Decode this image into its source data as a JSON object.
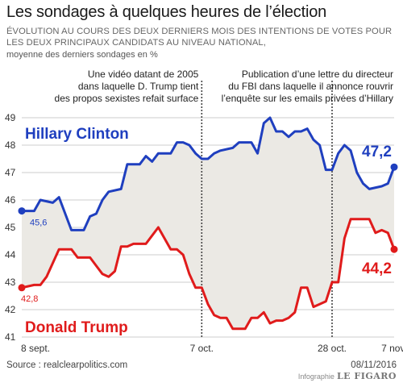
{
  "header": {
    "title": "Les sondages à quelques heures de l’élection",
    "subtitle": "ÉVOLUTION AU COURS DES DEUX DERNIERS MOIS DES INTENTIONS DE VOTES POUR LES DEUX PRINCIPAUX CANDIDATS AU NIVEAU NATIONAL,",
    "note": "moyenne des derniers sondages en %"
  },
  "footer": {
    "source": "Source : realclearpolitics.com",
    "date": "08/11/2016",
    "credit_prefix": "Infographie",
    "credit_brand": "LE FIGARO"
  },
  "colors": {
    "clinton": "#1f3fbf",
    "trump": "#e01b1b",
    "fill": "#ebe9e4",
    "grid": "#bdbdbd",
    "event_line": "#444444"
  },
  "chart_data": {
    "type": "line",
    "x_unit": "days since 8 sept.",
    "x_ticks": [
      {
        "x": 0,
        "label": "8 sept."
      },
      {
        "x": 29,
        "label": "7 oct."
      },
      {
        "x": 50,
        "label": "28 oct."
      },
      {
        "x": 60,
        "label": "7 nov."
      }
    ],
    "ylim": [
      41,
      49
    ],
    "y_ticks": [
      41,
      42,
      43,
      44,
      45,
      46,
      47,
      48,
      49
    ],
    "grid": true,
    "series": [
      {
        "name": "Hillary Clinton",
        "color": "#1f3fbf",
        "start_label": "45,6",
        "end_label": "47,2",
        "points": [
          [
            0,
            45.6
          ],
          [
            2,
            45.6
          ],
          [
            3,
            46.0
          ],
          [
            5,
            45.9
          ],
          [
            6,
            46.1
          ],
          [
            7,
            45.5
          ],
          [
            8,
            44.9
          ],
          [
            10,
            44.9
          ],
          [
            11,
            45.4
          ],
          [
            12,
            45.5
          ],
          [
            13,
            46.0
          ],
          [
            14,
            46.3
          ],
          [
            16,
            46.4
          ],
          [
            17,
            47.3
          ],
          [
            19,
            47.3
          ],
          [
            20,
            47.6
          ],
          [
            21,
            47.4
          ],
          [
            22,
            47.7
          ],
          [
            24,
            47.7
          ],
          [
            25,
            48.1
          ],
          [
            26,
            48.1
          ],
          [
            27,
            48.0
          ],
          [
            28,
            47.7
          ],
          [
            29,
            47.5
          ],
          [
            30,
            47.5
          ],
          [
            31,
            47.7
          ],
          [
            32,
            47.8
          ],
          [
            34,
            47.9
          ],
          [
            35,
            48.1
          ],
          [
            37,
            48.1
          ],
          [
            38,
            47.7
          ],
          [
            39,
            48.8
          ],
          [
            40,
            49.0
          ],
          [
            41,
            48.5
          ],
          [
            42,
            48.5
          ],
          [
            43,
            48.3
          ],
          [
            44,
            48.5
          ],
          [
            45,
            48.5
          ],
          [
            46,
            48.6
          ],
          [
            47,
            48.2
          ],
          [
            48,
            48.0
          ],
          [
            49,
            47.1
          ],
          [
            50,
            47.1
          ],
          [
            51,
            47.7
          ],
          [
            52,
            48.0
          ],
          [
            53,
            47.8
          ],
          [
            54,
            47.0
          ],
          [
            55,
            46.6
          ],
          [
            56,
            46.4
          ],
          [
            58,
            46.5
          ],
          [
            59,
            46.6
          ],
          [
            60,
            47.2
          ]
        ]
      },
      {
        "name": "Donald Trump",
        "color": "#e01b1b",
        "start_label": "42,8",
        "end_label": "44,2",
        "points": [
          [
            0,
            42.8
          ],
          [
            2,
            42.9
          ],
          [
            3,
            42.9
          ],
          [
            4,
            43.2
          ],
          [
            5,
            43.7
          ],
          [
            6,
            44.2
          ],
          [
            8,
            44.2
          ],
          [
            9,
            43.9
          ],
          [
            11,
            43.9
          ],
          [
            12,
            43.6
          ],
          [
            13,
            43.3
          ],
          [
            14,
            43.2
          ],
          [
            15,
            43.4
          ],
          [
            16,
            44.3
          ],
          [
            17,
            44.3
          ],
          [
            18,
            44.4
          ],
          [
            20,
            44.4
          ],
          [
            21,
            44.7
          ],
          [
            22,
            45.0
          ],
          [
            23,
            44.6
          ],
          [
            24,
            44.2
          ],
          [
            25,
            44.2
          ],
          [
            26,
            44.0
          ],
          [
            27,
            43.3
          ],
          [
            28,
            42.8
          ],
          [
            29,
            42.8
          ],
          [
            30,
            42.2
          ],
          [
            31,
            41.8
          ],
          [
            32,
            41.7
          ],
          [
            33,
            41.7
          ],
          [
            34,
            41.3
          ],
          [
            36,
            41.3
          ],
          [
            37,
            41.7
          ],
          [
            38,
            41.7
          ],
          [
            39,
            41.9
          ],
          [
            40,
            41.5
          ],
          [
            41,
            41.6
          ],
          [
            42,
            41.6
          ],
          [
            43,
            41.7
          ],
          [
            44,
            41.9
          ],
          [
            45,
            42.8
          ],
          [
            46,
            42.8
          ],
          [
            47,
            42.1
          ],
          [
            48,
            42.2
          ],
          [
            49,
            42.3
          ],
          [
            50,
            43.0
          ],
          [
            51,
            43.0
          ],
          [
            52,
            44.6
          ],
          [
            53,
            45.3
          ],
          [
            54,
            45.3
          ],
          [
            56,
            45.3
          ],
          [
            57,
            44.8
          ],
          [
            58,
            44.9
          ],
          [
            59,
            44.8
          ],
          [
            60,
            44.2
          ]
        ]
      }
    ],
    "series_labels": [
      {
        "series": "Hillary Clinton",
        "text": "Hillary Clinton"
      },
      {
        "series": "Donald Trump",
        "text": "Donald Trump"
      }
    ],
    "annotations": [
      {
        "x": 29,
        "lines": [
          "Une vidéo datant de 2005",
          "dans laquelle D. Trump tient",
          "des propos sexistes refait surface"
        ]
      },
      {
        "x": 50,
        "lines": [
          "Publication d’une lettre du directeur",
          "du FBI dans laquelle il annonce rouvrir",
          "l’enquête sur les emails privées d’Hillary"
        ]
      }
    ]
  }
}
